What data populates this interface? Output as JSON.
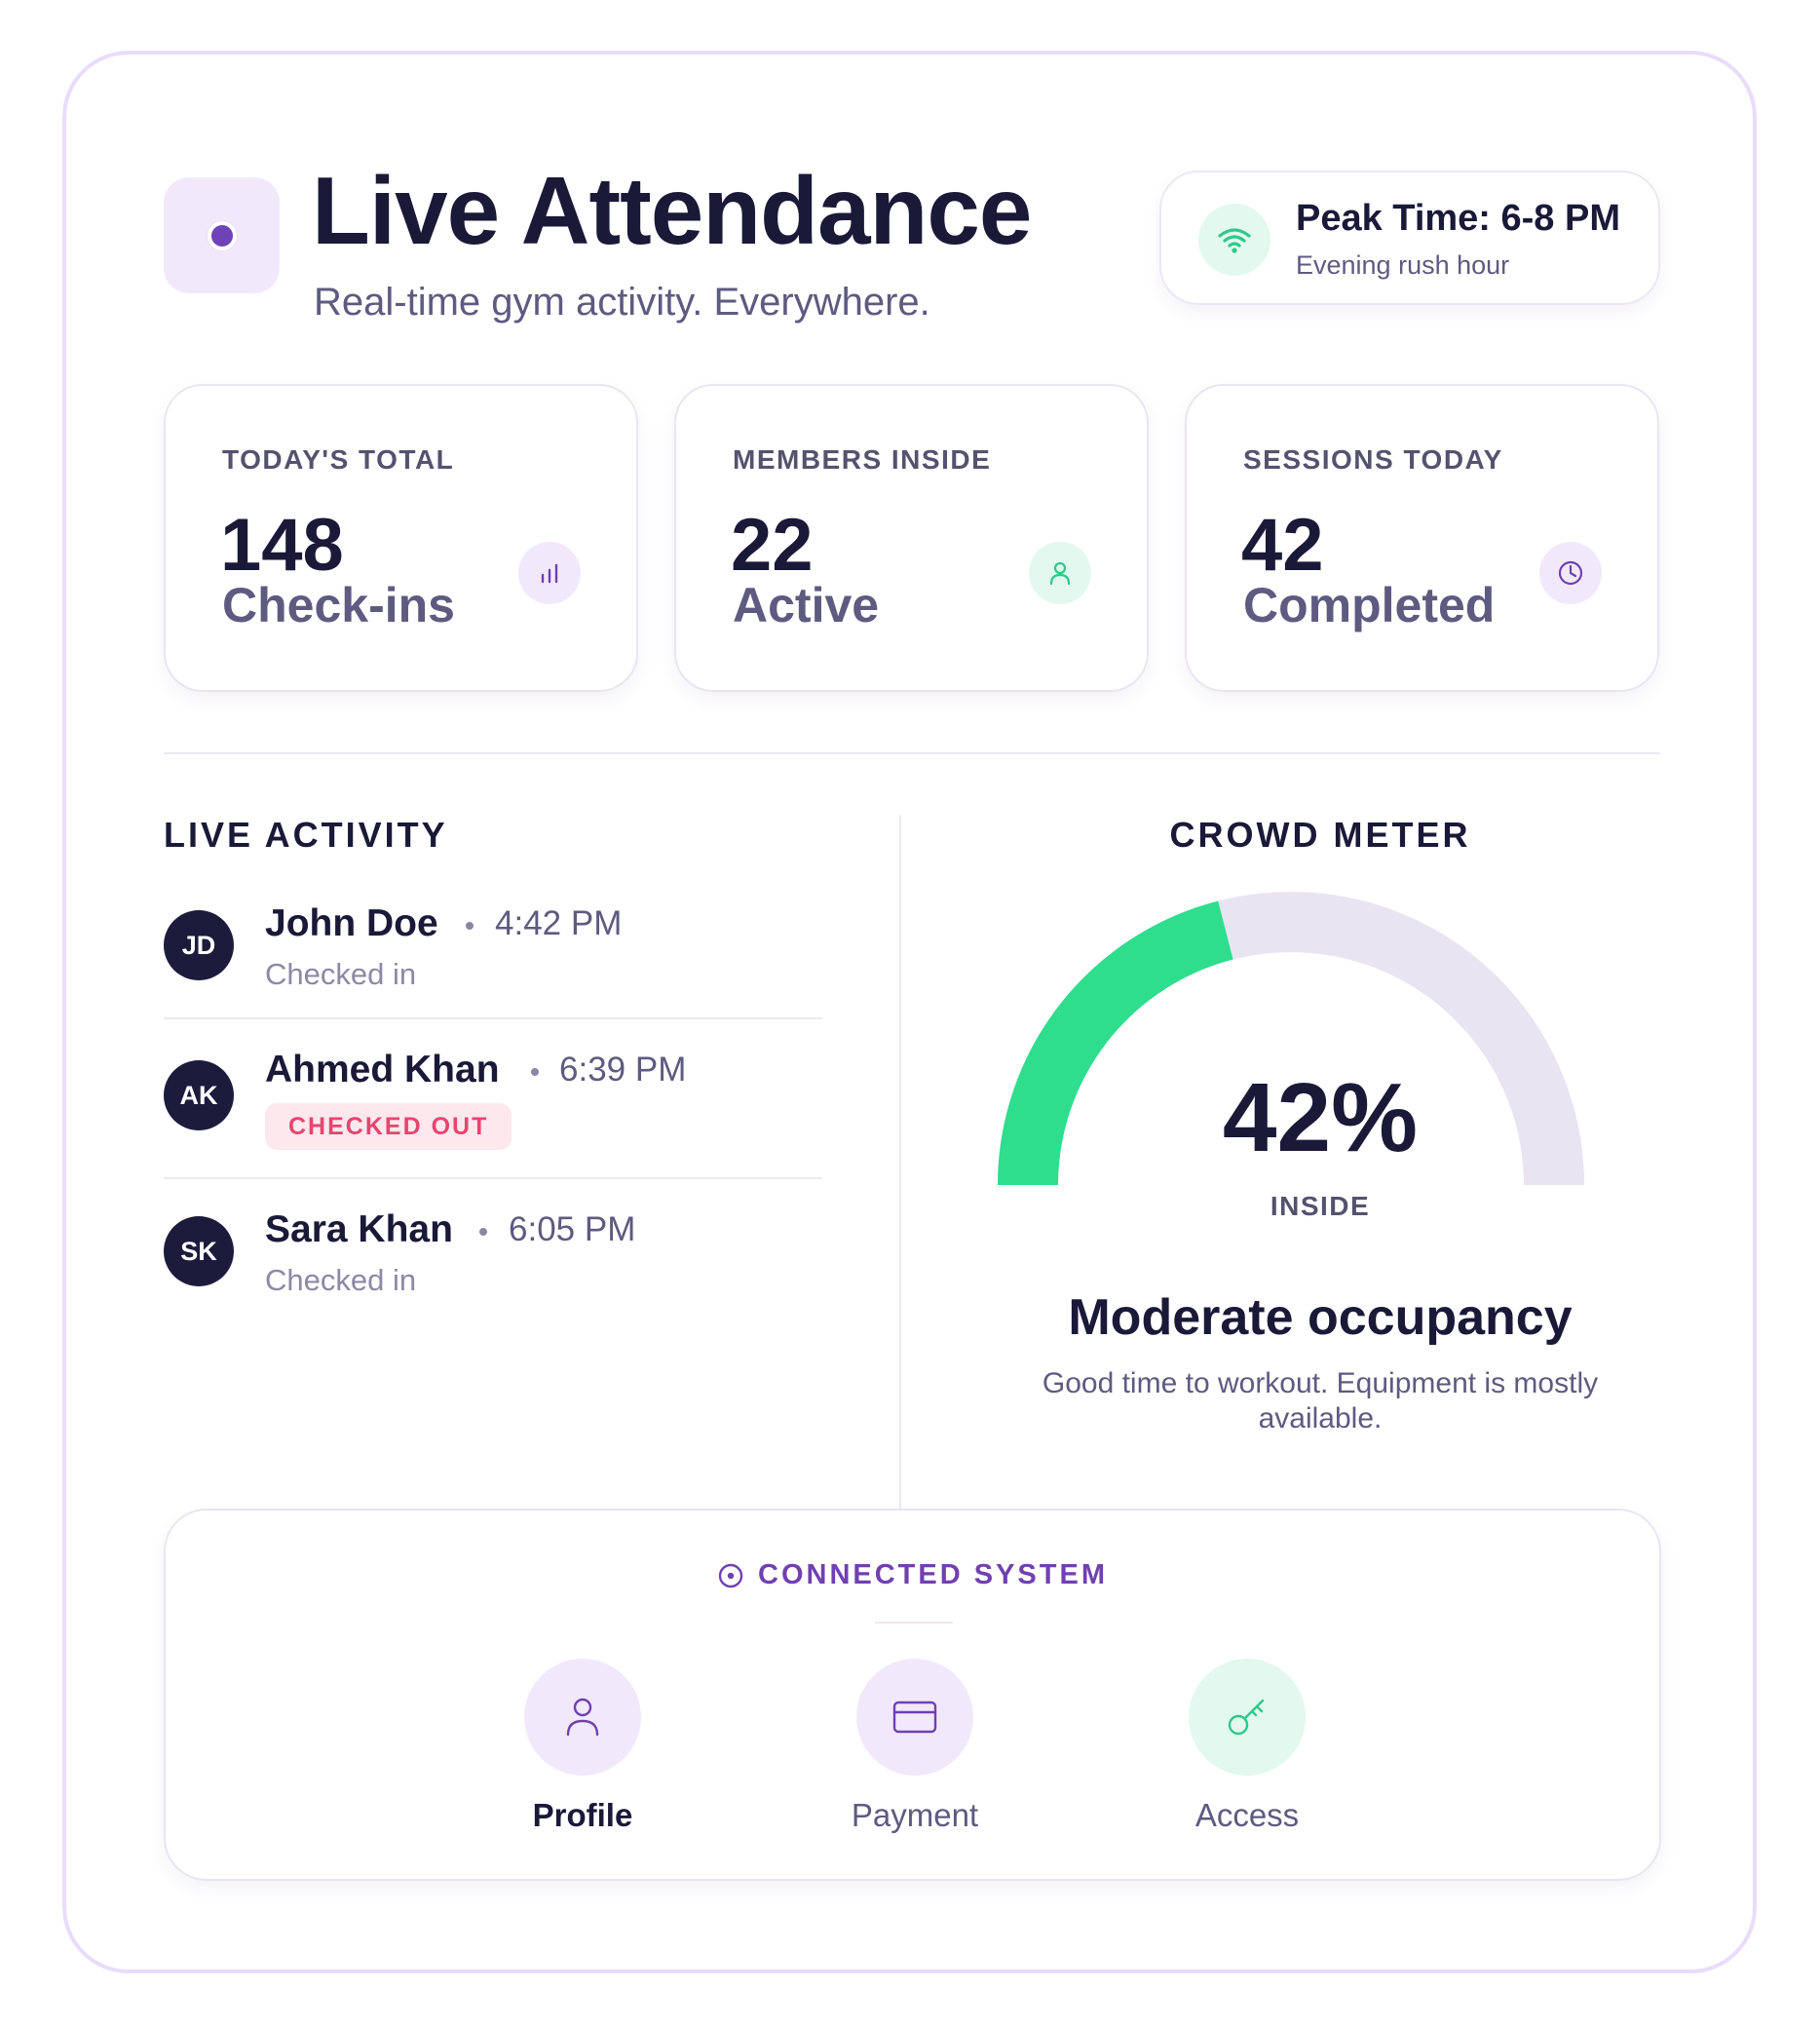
{
  "header": {
    "title": "Live Attendance",
    "subtitle": "Real-time gym activity. Everywhere.",
    "peak": {
      "title": "Peak Time: 6-8 PM",
      "subtitle": "Evening rush hour",
      "icon": "wifi-icon"
    }
  },
  "stats": [
    {
      "label": "TODAY'S TOTAL",
      "value": "148",
      "unit": "Check-ins",
      "icon": "bar-chart-icon",
      "icon_color": "#7040b0",
      "icon_bg": "#f1e9fb"
    },
    {
      "label": "MEMBERS INSIDE",
      "value": "22",
      "unit": "Active",
      "icon": "user-icon",
      "icon_color": "#2fc98a",
      "icon_bg": "#e3f8ef"
    },
    {
      "label": "SESSIONS TODAY",
      "value": "42",
      "unit": "Completed",
      "icon": "clock-icon",
      "icon_color": "#7040b0",
      "icon_bg": "#f1e9fb"
    }
  ],
  "activity": {
    "title": "LIVE ACTIVITY",
    "items": [
      {
        "initials": "JD",
        "name": "John Doe",
        "time": "4:42 PM",
        "status": "Checked in"
      },
      {
        "initials": "AK",
        "name": "Ahmed Khan",
        "time": "6:39 PM",
        "status": "CHECKED OUT"
      },
      {
        "initials": "SK",
        "name": "Sara Khan",
        "time": "6:05 PM",
        "status": "Checked in"
      }
    ]
  },
  "crowd": {
    "title": "CROWD METER",
    "percent": 42,
    "percent_label": "42%",
    "inside_label": "INSIDE",
    "occupancy_title": "Moderate occupancy",
    "occupancy_desc": "Good time to workout. Equipment is mostly available.",
    "fill_color": "#2ede8d",
    "track_color": "#e8e4f1"
  },
  "system": {
    "title": "CONNECTED SYSTEM",
    "items": [
      {
        "label": "Profile",
        "icon": "user-icon",
        "active": true
      },
      {
        "label": "Payment",
        "icon": "credit-card-icon",
        "active": false
      },
      {
        "label": "Access",
        "icon": "key-icon",
        "active": false
      }
    ]
  },
  "colors": {
    "accent": "#7040b0",
    "green": "#2ede8d",
    "dark": "#1a1938",
    "danger": "#e8446f"
  }
}
